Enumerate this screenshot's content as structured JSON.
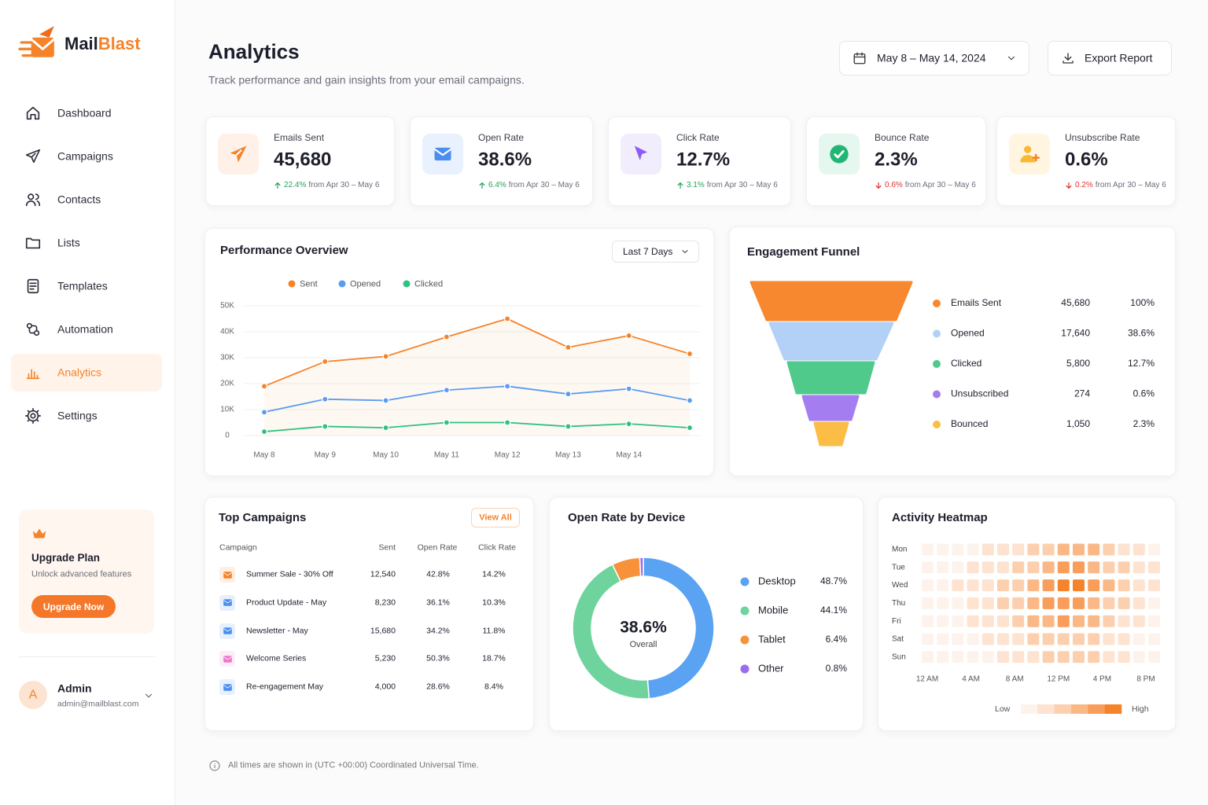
{
  "sidebar": {
    "brand": [
      "Mail",
      "Blast"
    ],
    "nav": [
      {
        "label": "Dashboard"
      },
      {
        "label": "Campaigns"
      },
      {
        "label": "Contacts"
      },
      {
        "label": "Lists"
      },
      {
        "label": "Templates"
      },
      {
        "label": "Automation"
      },
      {
        "label": "Analytics",
        "active": true
      },
      {
        "label": "Settings"
      }
    ],
    "upgrade": {
      "title": "Upgrade Plan",
      "text": "Unlock advanced features",
      "button": "Upgrade Now"
    },
    "user": {
      "initial": "A",
      "name": "Admin",
      "email": "admin@mailblast.com"
    }
  },
  "header": {
    "title": "Analytics",
    "subtitle": "Track performance and gain insights from your email campaigns.",
    "date_range": "May 8 – May 14, 2024",
    "export": "Export Report"
  },
  "kpis": [
    {
      "label": "Emails Sent",
      "value": "45,680",
      "change": "22.4%",
      "direction": "up",
      "period": "from Apr 30 – May 6"
    },
    {
      "label": "Open Rate",
      "value": "38.6%",
      "change": "6.4%",
      "direction": "up",
      "period": "from Apr 30 – May 6"
    },
    {
      "label": "Click Rate",
      "value": "12.7%",
      "change": "3.1%",
      "direction": "up",
      "period": "from Apr 30 – May 6"
    },
    {
      "label": "Bounce Rate",
      "value": "2.3%",
      "change": "0.6%",
      "direction": "down",
      "period": "from Apr 30 – May 6"
    },
    {
      "label": "Unsubscribe Rate",
      "value": "0.6%",
      "change": "0.2%",
      "direction": "down",
      "period": "from Apr 30 – May 6"
    }
  ],
  "performance": {
    "title": "Performance Overview",
    "range": "Last 7 Days",
    "chart_data": {
      "type": "line",
      "categories": [
        "May 8",
        "May 9",
        "May 10",
        "May 11",
        "May 12",
        "May 13",
        "May 14",
        null
      ],
      "series": [
        {
          "name": "Sent",
          "color": "#f5832a",
          "values": [
            19000,
            28500,
            30500,
            38000,
            45000,
            34000,
            38500,
            31500
          ]
        },
        {
          "name": "Opened",
          "color": "#5b9cf0",
          "values": [
            9000,
            14000,
            13500,
            17500,
            19000,
            16000,
            18000,
            13500
          ]
        },
        {
          "name": "Clicked",
          "color": "#2ec27e",
          "values": [
            1500,
            3500,
            3000,
            5000,
            5000,
            3500,
            4500,
            3000
          ]
        }
      ],
      "ylim": [
        0,
        50000
      ],
      "yticks": [
        0,
        {
          "value": 10000,
          "label": "10K"
        },
        {
          "value": 20000,
          "label": "20K"
        },
        {
          "value": 30000,
          "label": "30K"
        },
        {
          "value": 40000,
          "label": "40K"
        },
        {
          "value": 50000,
          "label": "50K"
        }
      ],
      "grid": true
    }
  },
  "funnel": {
    "title": "Engagement Funnel",
    "items": [
      {
        "name": "Emails Sent",
        "value": "45,680",
        "percent": "100%",
        "color": "#f7882f"
      },
      {
        "name": "Opened",
        "value": "17,640",
        "percent": "38.6%",
        "color": "#b3d1f6"
      },
      {
        "name": "Clicked",
        "value": "5,800",
        "percent": "12.7%",
        "color": "#4fca8b"
      },
      {
        "name": "Unsubscribed",
        "value": "274",
        "percent": "0.6%",
        "color": "#a47df0"
      },
      {
        "name": "Bounced",
        "value": "1,050",
        "percent": "2.3%",
        "color": "#fbbd45"
      }
    ]
  },
  "top_campaigns": {
    "title": "Top Campaigns",
    "view_all": "View All",
    "columns": [
      "Campaign",
      "Sent",
      "Open Rate",
      "Click Rate"
    ],
    "rows": [
      {
        "name": "Summer Sale - 30% Off",
        "sent": "12,540",
        "open_rate": "42.8%",
        "click_rate": "14.2%",
        "color": "#f5832a"
      },
      {
        "name": "Product Update - May",
        "sent": "8,230",
        "open_rate": "36.1%",
        "click_rate": "10.3%",
        "color": "#4b8ef0"
      },
      {
        "name": "Newsletter - May",
        "sent": "15,680",
        "open_rate": "34.2%",
        "click_rate": "11.8%",
        "color": "#4b8ef0"
      },
      {
        "name": "Welcome Series",
        "sent": "5,230",
        "open_rate": "50.3%",
        "click_rate": "18.7%",
        "color": "#e879c9"
      },
      {
        "name": "Re-engagement May",
        "sent": "4,000",
        "open_rate": "28.6%",
        "click_rate": "8.4%",
        "color": "#4b8ef0"
      }
    ]
  },
  "device": {
    "title": "Open Rate by Device",
    "center_value": "38.6%",
    "center_label": "Overall",
    "chart_data": {
      "type": "pie",
      "donut": true,
      "categories": [
        "Desktop",
        "Mobile",
        "Tablet",
        "Other"
      ],
      "values": [
        48.7,
        44.1,
        6.4,
        0.8
      ],
      "value_labels": [
        "48.7%",
        "44.1%",
        "6.4%",
        "0.8%"
      ],
      "colors": [
        "#5aa2f2",
        "#6ed39c",
        "#f7923a",
        "#9b6cf0"
      ]
    }
  },
  "heatmap": {
    "title": "Activity Heatmap",
    "rows": [
      "Mon",
      "Tue",
      "Wed",
      "Thu",
      "Fri",
      "Sat",
      "Sun"
    ],
    "x_labels": [
      "12 AM",
      "4 AM",
      "8 AM",
      "12 PM",
      "4 PM",
      "8 PM"
    ],
    "colors": [
      "#fdf3ec",
      "#fde3d0",
      "#fcd0ae",
      "#fab886",
      "#f89d5a",
      "#f5832a"
    ],
    "values": [
      [
        0,
        0,
        0,
        0,
        1,
        1,
        1,
        2,
        2,
        3,
        3,
        3,
        2,
        1,
        1,
        0
      ],
      [
        0,
        0,
        0,
        1,
        1,
        1,
        2,
        2,
        3,
        4,
        4,
        3,
        2,
        2,
        1,
        1
      ],
      [
        0,
        0,
        1,
        1,
        1,
        2,
        2,
        3,
        4,
        5,
        5,
        4,
        3,
        2,
        1,
        1
      ],
      [
        0,
        0,
        0,
        1,
        1,
        2,
        2,
        3,
        4,
        4,
        4,
        3,
        2,
        2,
        1,
        0
      ],
      [
        0,
        0,
        0,
        1,
        1,
        1,
        2,
        3,
        3,
        4,
        3,
        3,
        2,
        1,
        1,
        0
      ],
      [
        0,
        0,
        0,
        0,
        1,
        1,
        1,
        2,
        2,
        2,
        2,
        2,
        1,
        1,
        0,
        0
      ],
      [
        0,
        0,
        0,
        0,
        0,
        1,
        1,
        1,
        2,
        2,
        2,
        2,
        1,
        1,
        0,
        0
      ]
    ],
    "low": "Low",
    "high": "High"
  },
  "footer_note": "All times are shown in (UTC +00:00) Coordinated Universal Time."
}
